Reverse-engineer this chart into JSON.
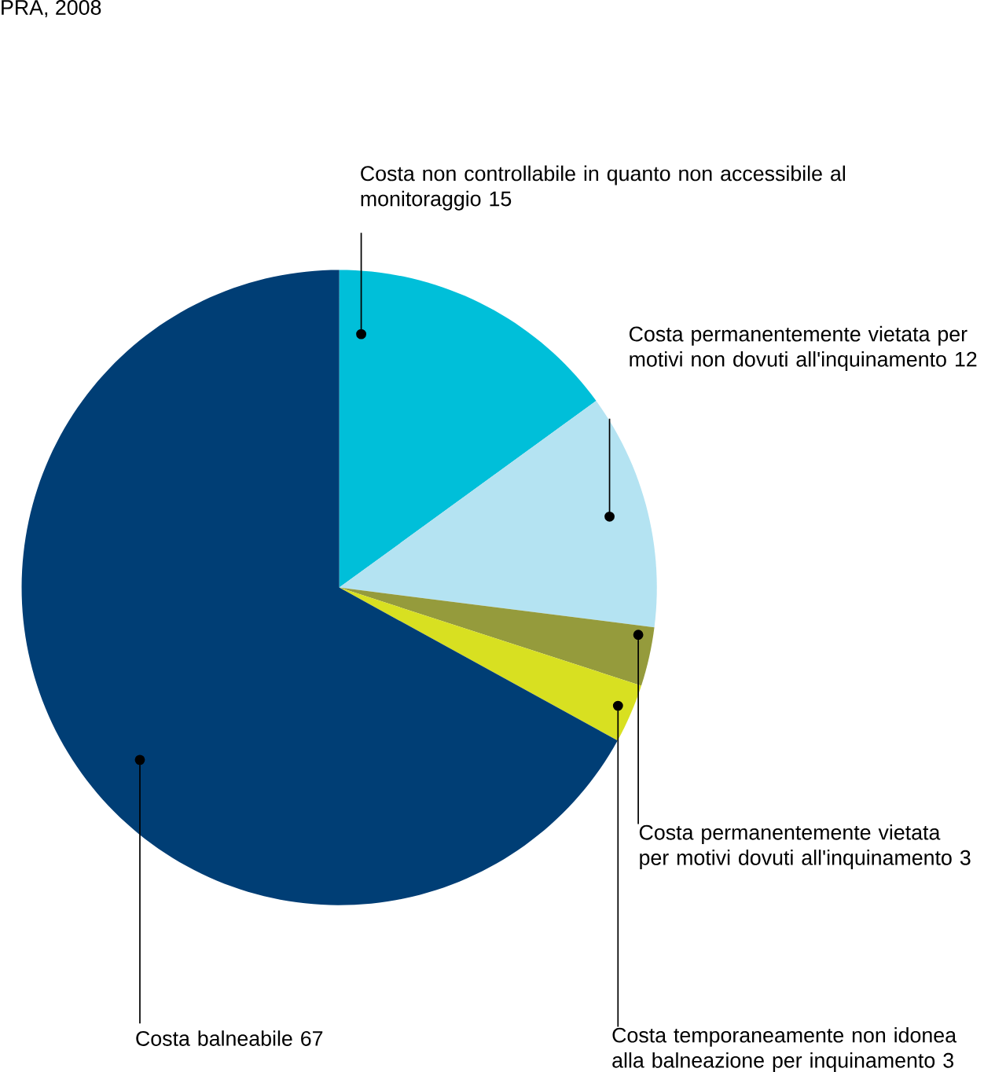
{
  "chart_data": {
    "type": "pie",
    "categories": [
      "Costa non controllabile in quanto non accessibile al monitoraggio",
      "Costa permanentemente vietata per motivi non dovuti all'inquinamento",
      "Costa permanentemente vietata per motivi dovuti all'inquinamento",
      "Costa temporaneamente non idonea alla balneazione per inquinamento",
      "Costa balneabile"
    ],
    "values": [
      15,
      12,
      3,
      3,
      67
    ],
    "colors": [
      "#00bfd9",
      "#b4e3f2",
      "#959b3c",
      "#d8e021",
      "#003e75"
    ],
    "data_labels": true,
    "annotations": [
      "PRA, 2008"
    ]
  }
}
